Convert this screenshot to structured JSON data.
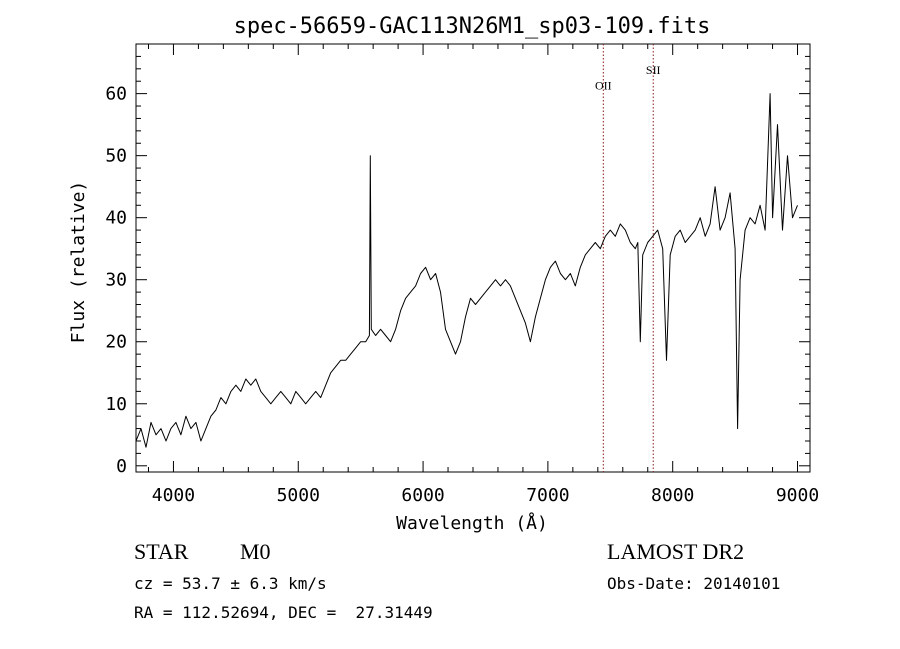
{
  "chart_data": {
    "type": "line",
    "title": "spec-56659-GAC113N26M1_sp03-109.fits",
    "xlabel": "Wavelength (Å)",
    "ylabel": "Flux (relative)",
    "xlim": [
      3700,
      9100
    ],
    "ylim": [
      -1,
      68
    ],
    "xticks": [
      4000,
      5000,
      6000,
      7000,
      8000,
      9000
    ],
    "yticks": [
      0,
      10,
      20,
      30,
      40,
      50,
      60
    ],
    "series": [
      {
        "color": "#000000",
        "points": [
          [
            3700,
            4
          ],
          [
            3740,
            6
          ],
          [
            3780,
            3
          ],
          [
            3820,
            7
          ],
          [
            3860,
            5
          ],
          [
            3900,
            6
          ],
          [
            3940,
            4
          ],
          [
            3980,
            6
          ],
          [
            4020,
            7
          ],
          [
            4060,
            5
          ],
          [
            4100,
            8
          ],
          [
            4140,
            6
          ],
          [
            4180,
            7
          ],
          [
            4220,
            4
          ],
          [
            4260,
            6
          ],
          [
            4300,
            8
          ],
          [
            4340,
            9
          ],
          [
            4380,
            11
          ],
          [
            4420,
            10
          ],
          [
            4460,
            12
          ],
          [
            4500,
            13
          ],
          [
            4540,
            12
          ],
          [
            4580,
            14
          ],
          [
            4620,
            13
          ],
          [
            4660,
            14
          ],
          [
            4700,
            12
          ],
          [
            4740,
            11
          ],
          [
            4780,
            10
          ],
          [
            4820,
            11
          ],
          [
            4860,
            12
          ],
          [
            4900,
            11
          ],
          [
            4940,
            10
          ],
          [
            4980,
            12
          ],
          [
            5020,
            11
          ],
          [
            5060,
            10
          ],
          [
            5100,
            11
          ],
          [
            5140,
            12
          ],
          [
            5180,
            11
          ],
          [
            5220,
            13
          ],
          [
            5260,
            15
          ],
          [
            5300,
            16
          ],
          [
            5340,
            17
          ],
          [
            5380,
            17
          ],
          [
            5420,
            18
          ],
          [
            5460,
            19
          ],
          [
            5500,
            20
          ],
          [
            5540,
            20
          ],
          [
            5570,
            21
          ],
          [
            5577,
            50
          ],
          [
            5585,
            22
          ],
          [
            5620,
            21
          ],
          [
            5660,
            22
          ],
          [
            5700,
            21
          ],
          [
            5740,
            20
          ],
          [
            5780,
            22
          ],
          [
            5820,
            25
          ],
          [
            5860,
            27
          ],
          [
            5900,
            28
          ],
          [
            5940,
            29
          ],
          [
            5980,
            31
          ],
          [
            6020,
            32
          ],
          [
            6060,
            30
          ],
          [
            6100,
            31
          ],
          [
            6140,
            28
          ],
          [
            6180,
            22
          ],
          [
            6220,
            20
          ],
          [
            6260,
            18
          ],
          [
            6300,
            20
          ],
          [
            6340,
            24
          ],
          [
            6380,
            27
          ],
          [
            6420,
            26
          ],
          [
            6460,
            27
          ],
          [
            6500,
            28
          ],
          [
            6540,
            29
          ],
          [
            6580,
            30
          ],
          [
            6620,
            29
          ],
          [
            6660,
            30
          ],
          [
            6700,
            29
          ],
          [
            6740,
            27
          ],
          [
            6780,
            25
          ],
          [
            6820,
            23
          ],
          [
            6860,
            20
          ],
          [
            6900,
            24
          ],
          [
            6940,
            27
          ],
          [
            6980,
            30
          ],
          [
            7020,
            32
          ],
          [
            7060,
            33
          ],
          [
            7100,
            31
          ],
          [
            7140,
            30
          ],
          [
            7180,
            31
          ],
          [
            7220,
            29
          ],
          [
            7260,
            32
          ],
          [
            7300,
            34
          ],
          [
            7340,
            35
          ],
          [
            7380,
            36
          ],
          [
            7420,
            35
          ],
          [
            7460,
            37
          ],
          [
            7500,
            38
          ],
          [
            7540,
            37
          ],
          [
            7580,
            39
          ],
          [
            7620,
            38
          ],
          [
            7660,
            36
          ],
          [
            7700,
            35
          ],
          [
            7720,
            36
          ],
          [
            7740,
            20
          ],
          [
            7760,
            34
          ],
          [
            7800,
            36
          ],
          [
            7840,
            37
          ],
          [
            7880,
            38
          ],
          [
            7920,
            35
          ],
          [
            7950,
            17
          ],
          [
            7980,
            34
          ],
          [
            8020,
            37
          ],
          [
            8060,
            38
          ],
          [
            8100,
            36
          ],
          [
            8140,
            37
          ],
          [
            8180,
            38
          ],
          [
            8220,
            40
          ],
          [
            8260,
            37
          ],
          [
            8300,
            39
          ],
          [
            8340,
            45
          ],
          [
            8380,
            38
          ],
          [
            8420,
            40
          ],
          [
            8460,
            44
          ],
          [
            8500,
            35
          ],
          [
            8520,
            6
          ],
          [
            8540,
            30
          ],
          [
            8580,
            38
          ],
          [
            8620,
            40
          ],
          [
            8660,
            39
          ],
          [
            8700,
            42
          ],
          [
            8740,
            38
          ],
          [
            8780,
            60
          ],
          [
            8800,
            40
          ],
          [
            8840,
            55
          ],
          [
            8880,
            38
          ],
          [
            8920,
            50
          ],
          [
            8960,
            40
          ],
          [
            9000,
            42
          ]
        ]
      }
    ],
    "annotations": [
      {
        "label": "OII",
        "x": 7444,
        "label_y": 60
      },
      {
        "label": "SII",
        "x": 7844,
        "label_y": 62.5
      }
    ]
  },
  "info": {
    "object_class": "STAR",
    "subclass": "M0",
    "survey": "LAMOST DR2",
    "cz": "cz = 53.7 ± 6.3 km/s",
    "obs_date": "Obs-Date: 20140101",
    "coords": "RA = 112.52694, DEC =  27.31449"
  }
}
